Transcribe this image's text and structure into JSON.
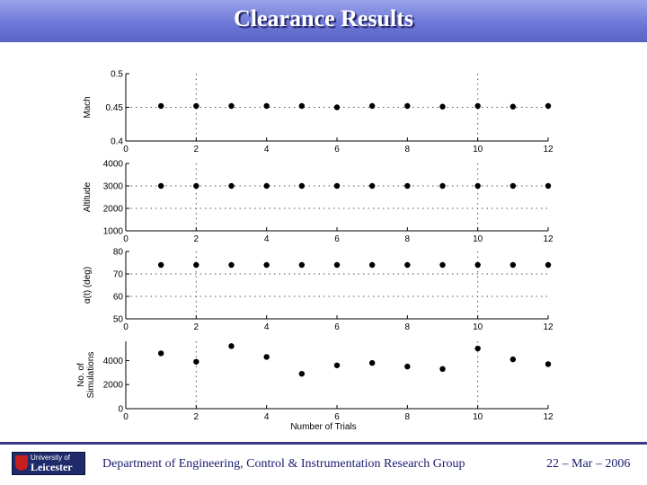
{
  "slide": {
    "title": "Clearance Results",
    "footer_dept": "Department of Engineering, Control & Instrumentation Research Group",
    "footer_date": "22 – Mar – 2006",
    "logo_line1": "University of",
    "logo_line2": "Leicester"
  },
  "colors": {
    "title_bar": "#6d78d8",
    "footer_text": "#1a1a70",
    "footer_line": "#3a3a8a"
  },
  "chart_data": [
    {
      "type": "scatter",
      "ylabel": "Mach",
      "xlim": [
        0,
        12
      ],
      "ylim": [
        0.4,
        0.5
      ],
      "x_ticks": [
        0,
        2,
        4,
        6,
        8,
        10,
        12
      ],
      "y_ticks": [
        0.4,
        0.45,
        0.5
      ],
      "y_tick_labels": [
        "0.4",
        "0.45",
        "0.5"
      ],
      "ref_lines": [
        0.45
      ],
      "x": [
        1,
        2,
        3,
        4,
        5,
        6,
        7,
        8,
        9,
        10,
        11,
        12
      ],
      "y": [
        0.452,
        0.452,
        0.452,
        0.452,
        0.452,
        0.45,
        0.452,
        0.452,
        0.451,
        0.452,
        0.451,
        0.452
      ]
    },
    {
      "type": "scatter",
      "ylabel": "Altitude",
      "xlim": [
        0,
        12
      ],
      "ylim": [
        1000,
        4000
      ],
      "x_ticks": [
        0,
        2,
        4,
        6,
        8,
        10,
        12
      ],
      "y_ticks": [
        1000,
        2000,
        3000,
        4000
      ],
      "y_tick_labels": [
        "1000",
        "2000",
        "3000",
        "4000"
      ],
      "ref_lines": [
        2000,
        3000
      ],
      "x": [
        1,
        2,
        3,
        4,
        5,
        6,
        7,
        8,
        9,
        10,
        11,
        12
      ],
      "y": [
        3000,
        3000,
        3000,
        3000,
        3000,
        3000,
        3000,
        3000,
        3000,
        3000,
        3000,
        3000
      ]
    },
    {
      "type": "scatter",
      "ylabel": "α(t) (deg)",
      "xlim": [
        0,
        12
      ],
      "ylim": [
        50,
        80
      ],
      "x_ticks": [
        0,
        2,
        4,
        6,
        8,
        10,
        12
      ],
      "y_ticks": [
        50,
        60,
        70,
        80
      ],
      "y_tick_labels": [
        "50",
        "60",
        "70",
        "80"
      ],
      "ref_lines": [
        60,
        70
      ],
      "x": [
        1,
        2,
        3,
        4,
        5,
        6,
        7,
        8,
        9,
        10,
        11,
        12
      ],
      "y": [
        74,
        74,
        74,
        74,
        74,
        74,
        74,
        74,
        74,
        74,
        74,
        74
      ]
    },
    {
      "type": "scatter",
      "ylabel": "No. of Simulations",
      "ylabel_lines": [
        "No. of",
        "Simulations"
      ],
      "xlabel": "Number of Trials",
      "xlim": [
        0,
        12
      ],
      "ylim": [
        0,
        5600
      ],
      "x_ticks": [
        0,
        2,
        4,
        6,
        8,
        10,
        12
      ],
      "y_ticks": [
        0,
        2000,
        4000
      ],
      "y_tick_labels": [
        "0",
        "2000",
        "4000"
      ],
      "ref_lines": [],
      "x": [
        1,
        2,
        3,
        4,
        5,
        6,
        7,
        8,
        9,
        10,
        11,
        12
      ],
      "y": [
        4600,
        3900,
        5200,
        4300,
        2900,
        3600,
        3800,
        3500,
        3300,
        5000,
        4100,
        3700
      ]
    }
  ]
}
